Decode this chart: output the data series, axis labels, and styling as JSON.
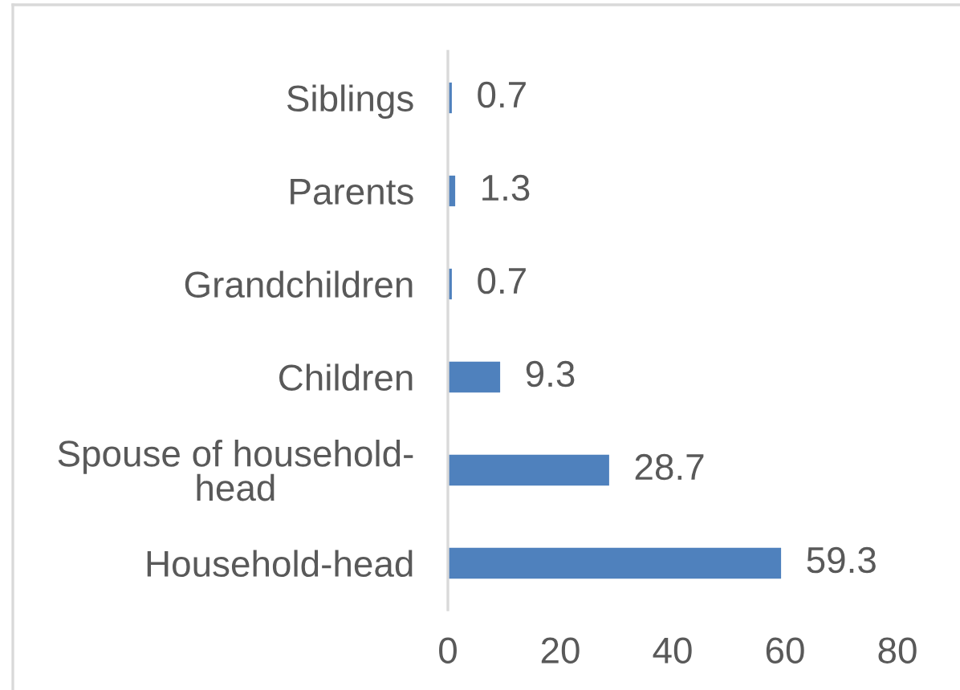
{
  "chart_data": {
    "type": "bar",
    "orientation": "horizontal",
    "categories": [
      "Siblings",
      "Parents",
      "Grandchildren",
      "Children",
      "Spouse of household-head",
      "Household-head"
    ],
    "values": [
      0.7,
      1.3,
      0.7,
      9.3,
      28.7,
      59.3
    ],
    "color": "#4f81bd",
    "xlim": [
      0,
      80
    ],
    "xticks": [
      0,
      20,
      40,
      60,
      80
    ],
    "grid": false,
    "data_labels": true
  }
}
